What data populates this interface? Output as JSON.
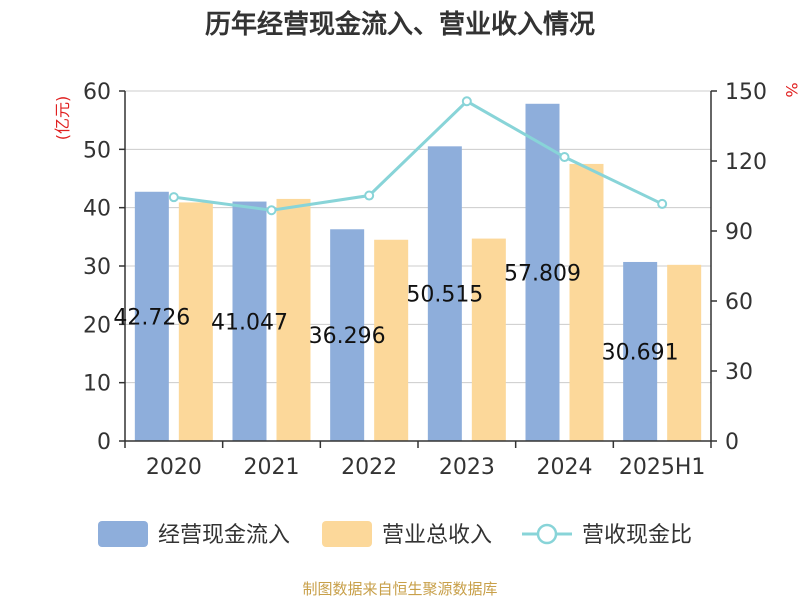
{
  "chart_data": {
    "type": "bar",
    "title": "历年经营现金流入、营业收入情况",
    "categories": [
      "2020",
      "2021",
      "2022",
      "2023",
      "2024",
      "2025H1"
    ],
    "left_unit": "(亿元)",
    "right_unit": "%",
    "ylim": [
      0,
      60
    ],
    "y_ticks": [
      "0",
      "10",
      "20",
      "30",
      "40",
      "50",
      "60"
    ],
    "y2lim": [
      0,
      150
    ],
    "y2_ticks": [
      "0",
      "30",
      "60",
      "90",
      "120",
      "150"
    ],
    "grid": true,
    "legend_position": "bottom",
    "series": [
      {
        "name": "经营现金流入",
        "type": "bar",
        "axis": "left",
        "color": "#8eaedb",
        "values": [
          42.726,
          41.047,
          36.296,
          50.515,
          57.809,
          30.691
        ],
        "labels": [
          "42.726",
          "41.047",
          "36.296",
          "50.515",
          "57.809",
          "30.691"
        ]
      },
      {
        "name": "营业总收入",
        "type": "bar",
        "axis": "left",
        "color": "#fcd89a",
        "values": [
          40.9,
          41.5,
          34.5,
          34.7,
          47.5,
          30.2
        ]
      },
      {
        "name": "营收现金比",
        "type": "line",
        "axis": "right",
        "color": "#88d4d8",
        "values": [
          104.5,
          98.9,
          105.2,
          145.6,
          121.7,
          101.6
        ]
      }
    ],
    "source": "制图数据来自恒生聚源数据库"
  }
}
